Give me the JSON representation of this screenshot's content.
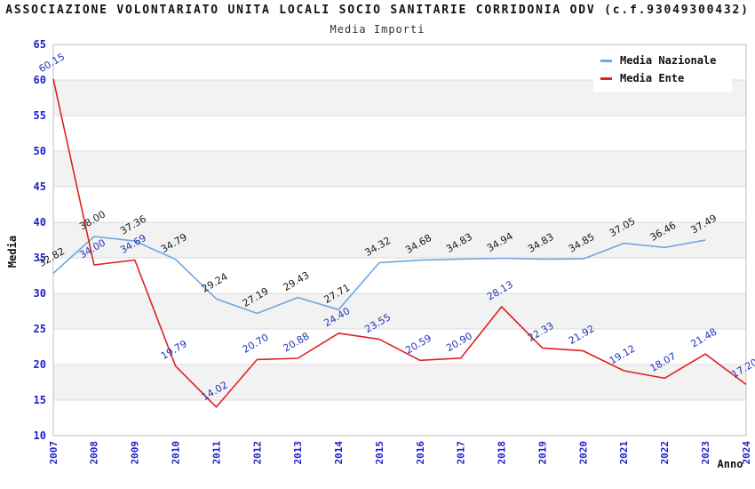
{
  "header": {
    "title": "ASSOCIAZIONE VOLONTARIATO UNITA LOCALI SOCIO SANITARIE CORRIDONIA ODV (c.f.93049300432)",
    "subtitle": "Media Importi"
  },
  "chart_data": {
    "type": "line",
    "title": "ASSOCIAZIONE VOLONTARIATO UNITA LOCALI SOCIO SANITARIE CORRIDONIA ODV (c.f.93049300432)",
    "subtitle": "Media Importi",
    "xlabel": "Anno",
    "ylabel": "Media",
    "ylim": [
      10,
      65
    ],
    "ytick_step": 5,
    "yticks": [
      10,
      15,
      20,
      25,
      30,
      35,
      40,
      45,
      50,
      55,
      60,
      65
    ],
    "grid": true,
    "alternating_bands": true,
    "legend_position": "top-right",
    "categories": [
      "2007",
      "2008",
      "2009",
      "2010",
      "2011",
      "2012",
      "2013",
      "2014",
      "2015",
      "2016",
      "2017",
      "2018",
      "2019",
      "2020",
      "2021",
      "2022",
      "2023",
      "2024"
    ],
    "series": [
      {
        "name": "Media Nazionale",
        "color": "#6FA8E0",
        "label_color": "#1a1a1a",
        "values": [
          32.82,
          38.0,
          37.36,
          34.79,
          29.24,
          27.19,
          29.43,
          27.71,
          34.32,
          34.68,
          34.83,
          34.94,
          34.83,
          34.85,
          37.05,
          36.46,
          37.49,
          null
        ]
      },
      {
        "name": "Media Ente",
        "color": "#E02020",
        "label_color": "#2233BB",
        "values": [
          60.15,
          34.0,
          34.69,
          19.79,
          14.02,
          20.7,
          20.88,
          24.4,
          23.55,
          20.59,
          20.9,
          28.13,
          22.33,
          21.92,
          19.12,
          18.07,
          21.48,
          17.2
        ]
      }
    ],
    "label_decimals": 2,
    "colors": {
      "tick_label": "#1F1FCC",
      "band": "#F2F2F2",
      "gridline": "#DCDCDC",
      "plot_border": "#C0C0C0",
      "background": "#FFFFFF"
    }
  }
}
